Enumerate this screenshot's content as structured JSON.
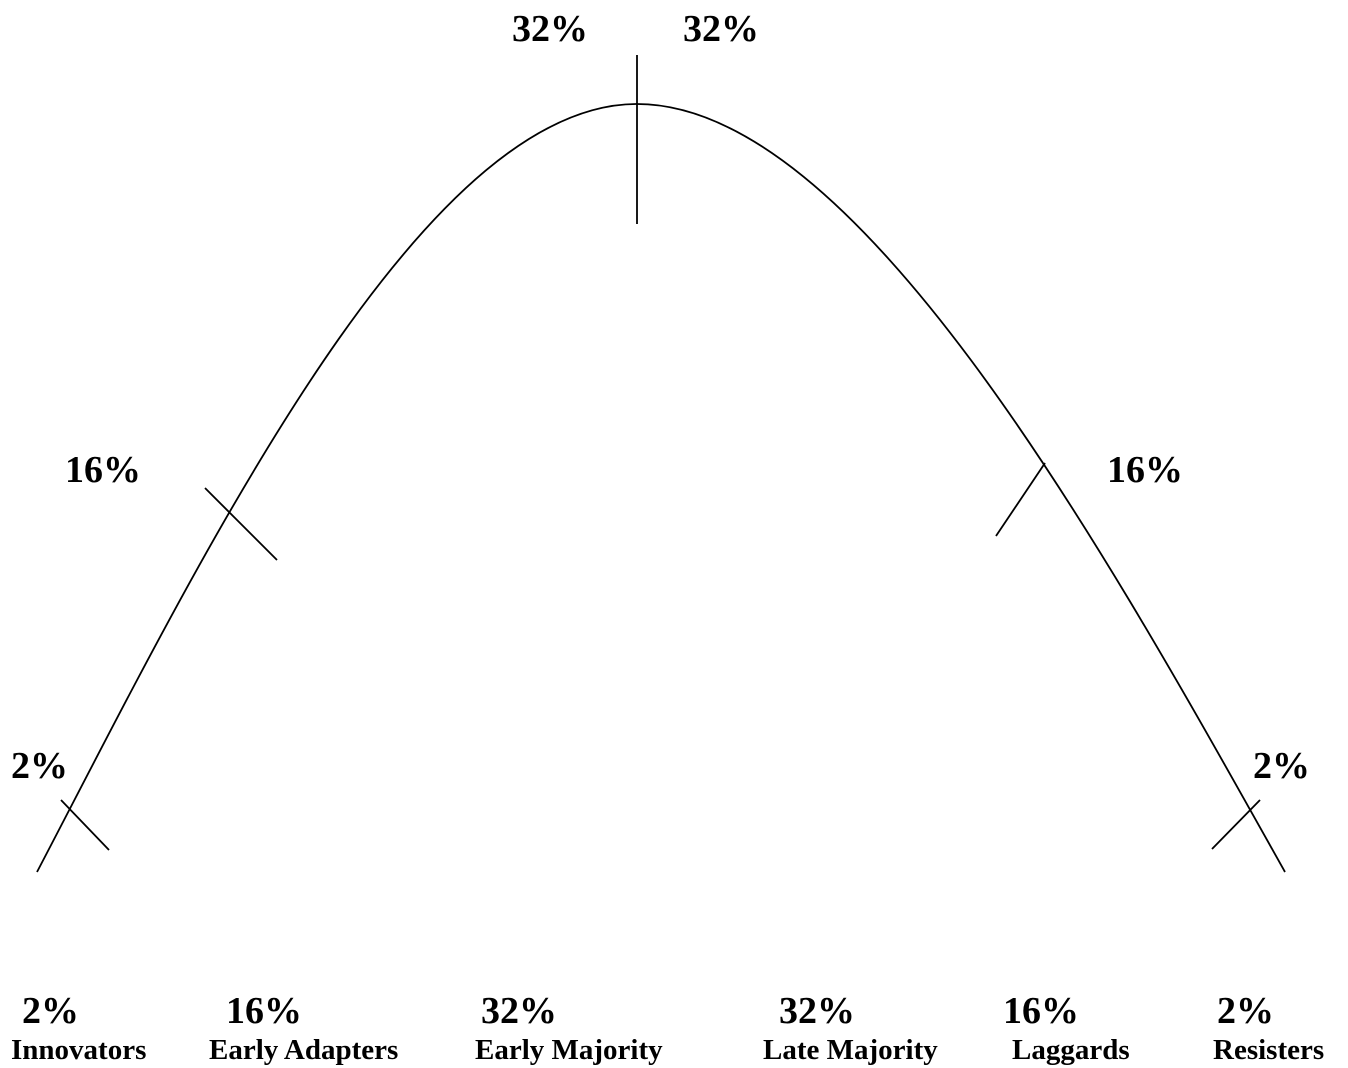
{
  "curve_labels": {
    "top_left": "32%",
    "top_right": "32%",
    "mid_left": "16%",
    "mid_right": "16%",
    "low_left": "2%",
    "low_right": "2%"
  },
  "categories": [
    {
      "percent": "2%",
      "name": "Innovators"
    },
    {
      "percent": "16%",
      "name": "Early Adapters"
    },
    {
      "percent": "32%",
      "name": "Early Majority"
    },
    {
      "percent": "32%",
      "name": "Late Majority"
    },
    {
      "percent": "16%",
      "name": "Laggards"
    },
    {
      "percent": "2%",
      "name": "Resisters"
    }
  ]
}
